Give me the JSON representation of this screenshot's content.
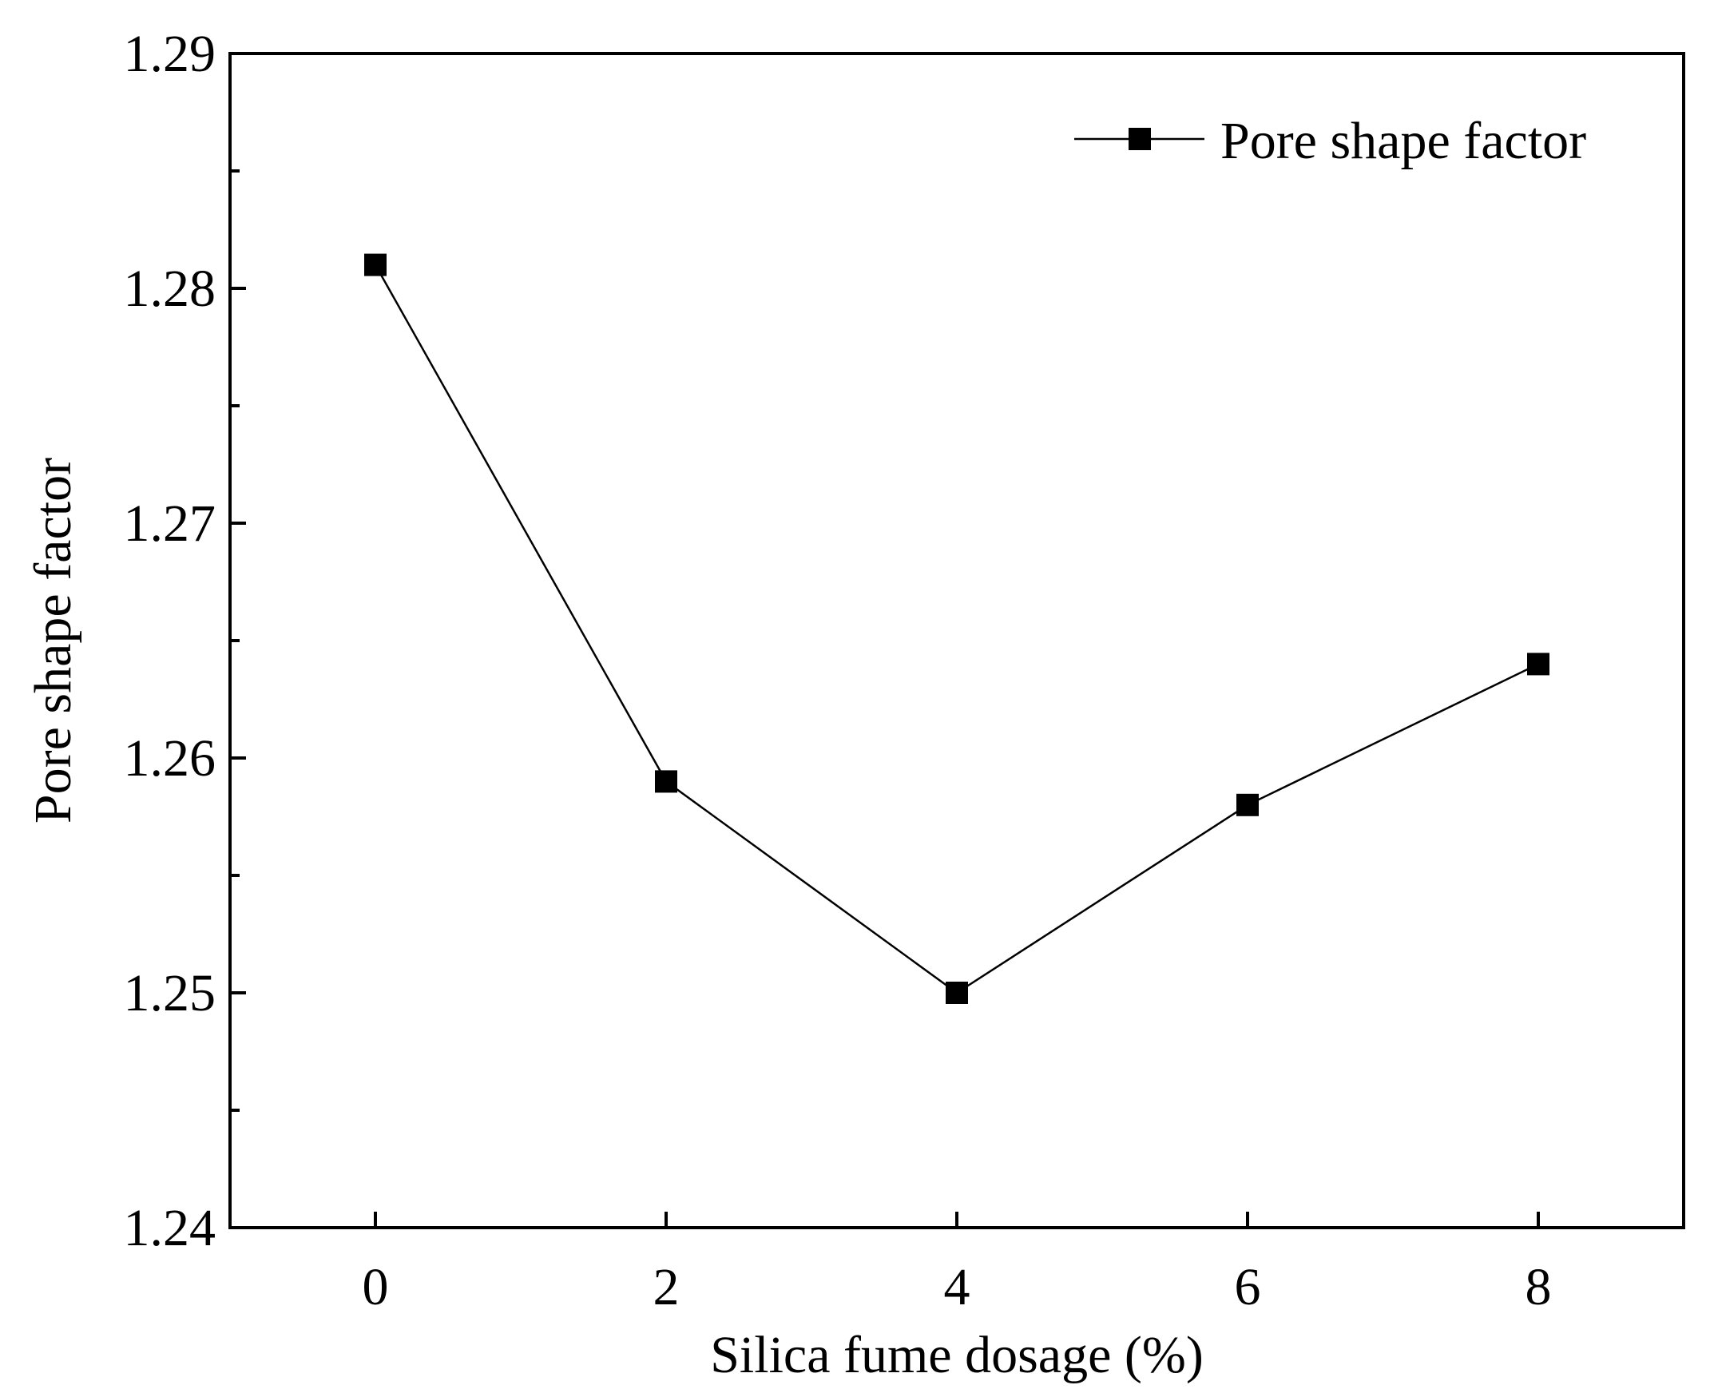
{
  "chart_data": {
    "type": "line",
    "title": "",
    "xlabel": "Silica fume dosage (%)",
    "ylabel": "Pore shape factor",
    "xlim": [
      -1,
      9
    ],
    "ylim": [
      1.24,
      1.29
    ],
    "x_ticks": [
      0,
      2,
      4,
      6,
      8
    ],
    "x_tick_labels": [
      "0",
      "2",
      "4",
      "6",
      "8"
    ],
    "y_ticks": [
      1.24,
      1.25,
      1.26,
      1.27,
      1.28,
      1.29
    ],
    "y_tick_labels": [
      "1.24",
      "1.25",
      "1.26",
      "1.27",
      "1.28",
      "1.29"
    ],
    "y_minor_ticks": [
      1.245,
      1.255,
      1.265,
      1.275,
      1.285
    ],
    "grid": false,
    "legend_position": "top-right",
    "series": [
      {
        "name": "Pore shape factor",
        "marker": "square",
        "color": "#000000",
        "x": [
          0,
          2,
          4,
          6,
          8
        ],
        "values": [
          1.281,
          1.259,
          1.25,
          1.258,
          1.264
        ]
      }
    ]
  }
}
